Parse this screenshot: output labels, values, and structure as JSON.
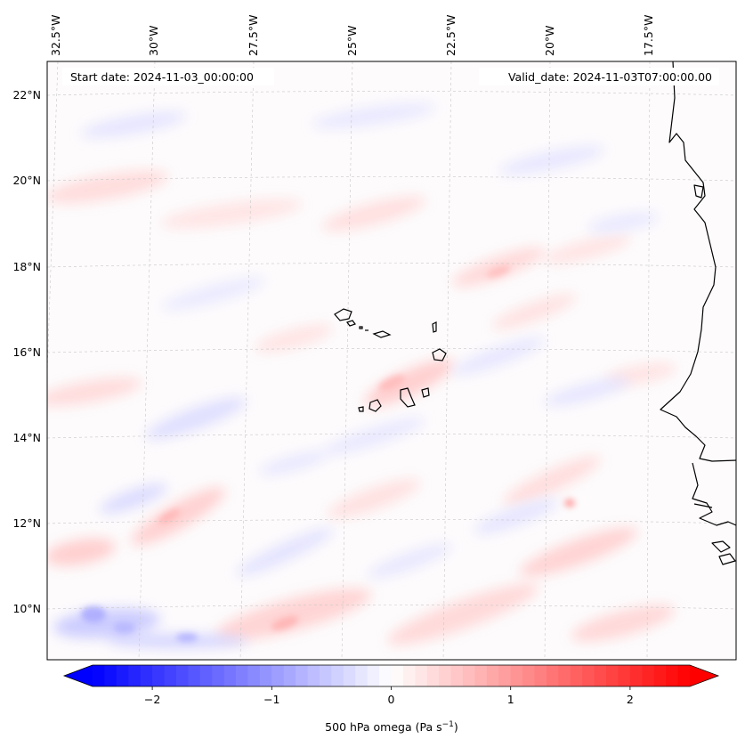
{
  "map": {
    "start_date": "Start date: 2024-11-03_00:00:00",
    "valid_date": "Valid_date: 2024-11-03T07:00:00.00",
    "lon_labels": [
      "32.5°W",
      "30°W",
      "27.5°W",
      "25°W",
      "22.5°W",
      "20°W",
      "17.5°W"
    ],
    "lat_labels": [
      "22°N",
      "20°N",
      "18°N",
      "16°N",
      "14°N",
      "12°N",
      "10°N"
    ],
    "variable": "500 hPa omega",
    "units": "(Pa s",
    "units_exp": "−1",
    "units_close": ")"
  },
  "colorbar": {
    "range": [
      -2.5,
      2.5
    ],
    "tick_values": [
      -2,
      -1,
      0,
      1,
      2
    ],
    "tick_labels": [
      "−2",
      "−1",
      "0",
      "1",
      "2"
    ],
    "colors": {
      "negative": "#0000ff",
      "zero": "#ffffff",
      "positive": "#ff0000"
    },
    "extend": "both"
  },
  "colors": {
    "coastline": "#000000",
    "grid": "#b0b0b0",
    "frame": "#000000"
  }
}
